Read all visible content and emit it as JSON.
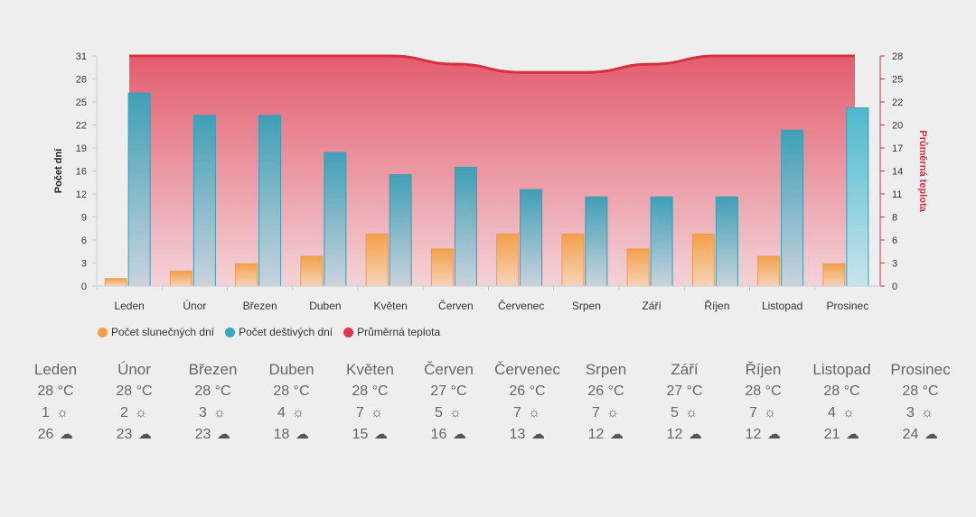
{
  "chart_data": {
    "type": "bar",
    "categories": [
      "Leden",
      "Únor",
      "Březen",
      "Duben",
      "Květen",
      "Červen",
      "Červenec",
      "Srpen",
      "Září",
      "Říjen",
      "Listopad",
      "Prosinec"
    ],
    "series": [
      {
        "name": "Počet slunečných dní",
        "axis": "left",
        "type": "bar",
        "color": "#f4a04a",
        "values": [
          1,
          2,
          3,
          4,
          7,
          5,
          7,
          7,
          5,
          7,
          4,
          3
        ]
      },
      {
        "name": "Počet deštivých dní",
        "axis": "left",
        "type": "bar",
        "color": "#3aa7bf",
        "values": [
          26,
          23,
          23,
          18,
          15,
          16,
          13,
          12,
          12,
          12,
          21,
          24
        ]
      },
      {
        "name": "Průměrná teplota",
        "axis": "right",
        "type": "area",
        "color": "#e0344d",
        "values": [
          28,
          28,
          28,
          28,
          28,
          27,
          26,
          26,
          27,
          28,
          28,
          28
        ]
      }
    ],
    "ylabel": "Počet dní",
    "y2label": "Průměrná teplota",
    "ylim": [
      0,
      31
    ],
    "yticks": [
      "0",
      "3",
      "6",
      "9",
      "12",
      "16",
      "19",
      "22",
      "25",
      "28",
      "31"
    ],
    "y2lim": [
      0,
      28
    ],
    "y2ticks": [
      "0",
      "3",
      "6",
      "8",
      "11",
      "14",
      "17",
      "20",
      "22",
      "25",
      "28"
    ],
    "legend": "bottom-left",
    "grid": false
  },
  "summary": {
    "months": [
      {
        "name": "Leden",
        "temp": "28 °C",
        "sun": "1",
        "rain": "26"
      },
      {
        "name": "Únor",
        "temp": "28 °C",
        "sun": "2",
        "rain": "23"
      },
      {
        "name": "Březen",
        "temp": "28 °C",
        "sun": "3",
        "rain": "23"
      },
      {
        "name": "Duben",
        "temp": "28 °C",
        "sun": "4",
        "rain": "18"
      },
      {
        "name": "Květen",
        "temp": "28 °C",
        "sun": "7",
        "rain": "15"
      },
      {
        "name": "Červen",
        "temp": "27 °C",
        "sun": "5",
        "rain": "16"
      },
      {
        "name": "Červenec",
        "temp": "26 °C",
        "sun": "7",
        "rain": "13"
      },
      {
        "name": "Srpen",
        "temp": "26 °C",
        "sun": "7",
        "rain": "12"
      },
      {
        "name": "Září",
        "temp": "27 °C",
        "sun": "5",
        "rain": "12"
      },
      {
        "name": "Říjen",
        "temp": "28 °C",
        "sun": "7",
        "rain": "12"
      },
      {
        "name": "Listopad",
        "temp": "28 °C",
        "sun": "4",
        "rain": "21"
      },
      {
        "name": "Prosinec",
        "temp": "28 °C",
        "sun": "3",
        "rain": "24"
      }
    ],
    "sun_icon": "sun-icon",
    "rain_icon": "cloud-rain-icon"
  }
}
